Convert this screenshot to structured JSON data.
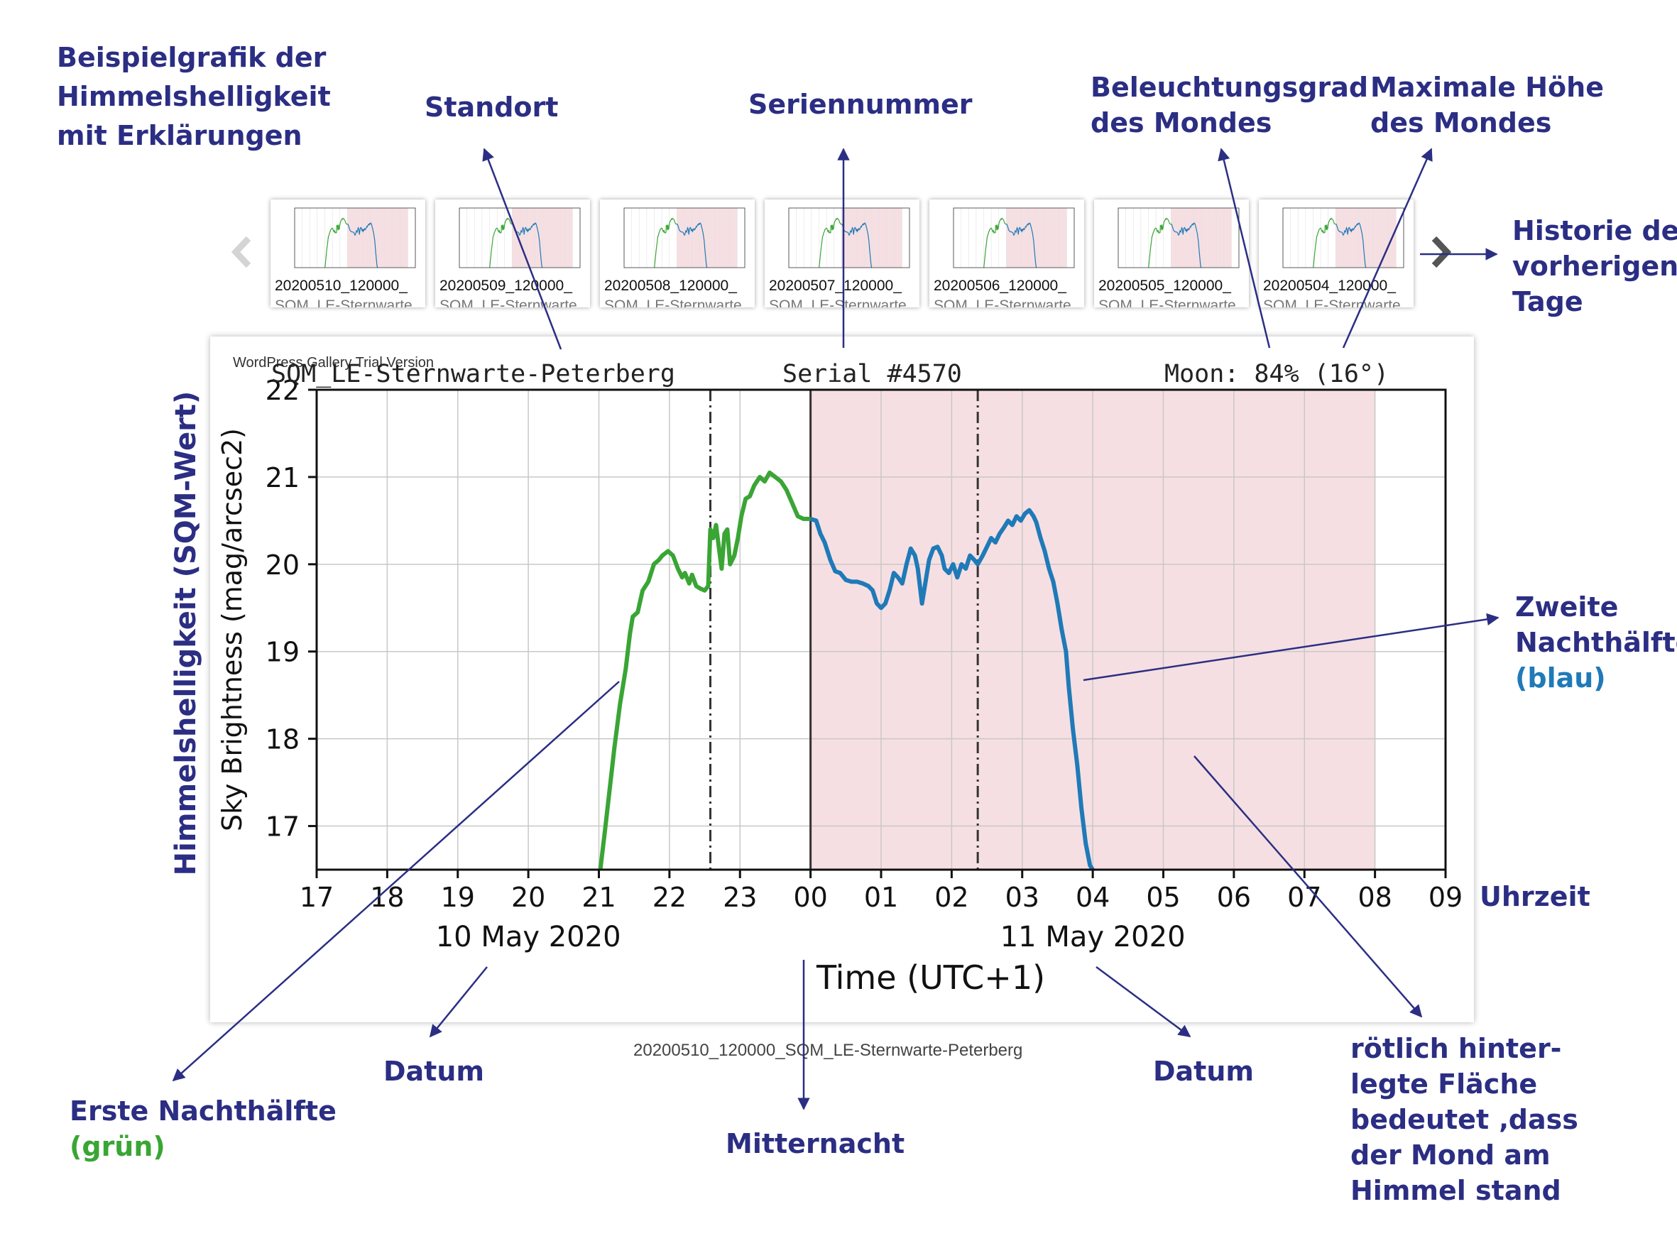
{
  "annotations": {
    "title_lines": [
      "Beispielgrafik der",
      "Himmelshelligkeit",
      "mit Erklärungen"
    ],
    "standort": "Standort",
    "seriennummer": "Seriennummer",
    "beleuchtung_lines": [
      "Beleuchtungsgrad",
      "des Mondes"
    ],
    "hoehe_lines": [
      "Maximale Höhe",
      "des Mondes"
    ],
    "historie_lines": [
      "Historie der",
      "vorherigen",
      "Tage"
    ],
    "zweite_lines": [
      "Zweite",
      "Nachthälfte"
    ],
    "zweite_color": "(blau)",
    "uhrzeit": "Uhrzeit",
    "erste": "Erste Nachthälfte",
    "erste_color": "(grün)",
    "datum_left": "Datum",
    "datum_right": "Datum",
    "mitternacht": "Mitternacht",
    "roetlich_lines": [
      "rötlich hinter-",
      "legte Fläche",
      "bedeutet ‚dass",
      "der Mond am",
      "Himmel stand"
    ],
    "y_axis_de": "Himmelshelligkeit (SQM-Wert)"
  },
  "gallery": {
    "thumbnails": [
      {
        "label": "20200510_120000_",
        "sub": "SQM_LE-Sternwarte"
      },
      {
        "label": "20200509_120000_",
        "sub": "SQM_LE-Sternwarte"
      },
      {
        "label": "20200508_120000_",
        "sub": "SQM_LE-Sternwarte"
      },
      {
        "label": "20200507_120000_",
        "sub": "SQM_LE-Sternwarte"
      },
      {
        "label": "20200506_120000_",
        "sub": "SQM_LE-Sternwarte"
      },
      {
        "label": "20200505_120000_",
        "sub": "SQM_LE-Sternwarte"
      },
      {
        "label": "20200504_120000_",
        "sub": "SQM_LE-Sternwarte"
      }
    ],
    "prev_icon": "chevron-left-icon",
    "next_icon": "chevron-right-icon",
    "trial_text": "WordPress Gallery Trial Version",
    "caption": "20200510_120000_SQM_LE-Sternwarte-Peterberg"
  },
  "chart_data": {
    "type": "line",
    "header_location": "SQM_LE-Sternwarte-Peterberg",
    "header_serial": "Serial #4570",
    "header_moon": "Moon: 84% (16°)",
    "ylabel": "Sky Brightness (mag/arcsec2)",
    "xlabel": "Time (UTC+1)",
    "date_labels": [
      {
        "hour": 20,
        "text": "10 May 2020"
      },
      {
        "hour": 28,
        "text": "11 May 2020"
      }
    ],
    "xlim": [
      17,
      33
    ],
    "ylim": [
      16.5,
      22
    ],
    "x_ticks": [
      {
        "v": 17,
        "label": "17"
      },
      {
        "v": 18,
        "label": "18"
      },
      {
        "v": 19,
        "label": "19"
      },
      {
        "v": 20,
        "label": "20"
      },
      {
        "v": 21,
        "label": "21"
      },
      {
        "v": 22,
        "label": "22"
      },
      {
        "v": 23,
        "label": "23"
      },
      {
        "v": 24,
        "label": "00"
      },
      {
        "v": 25,
        "label": "01"
      },
      {
        "v": 26,
        "label": "02"
      },
      {
        "v": 27,
        "label": "03"
      },
      {
        "v": 28,
        "label": "04"
      },
      {
        "v": 29,
        "label": "05"
      },
      {
        "v": 30,
        "label": "06"
      },
      {
        "v": 31,
        "label": "07"
      },
      {
        "v": 32,
        "label": "08"
      },
      {
        "v": 33,
        "label": "09"
      }
    ],
    "y_ticks": [
      17,
      18,
      19,
      20,
      21,
      22
    ],
    "grid": true,
    "moon_region": [
      24,
      32
    ],
    "vlines_dashdot": [
      22.58,
      26.37
    ],
    "vline_midnight": 24,
    "colors": {
      "first_half": "#3aa535",
      "second_half": "#1f7ab8",
      "moon_fill": "#f6dfe2",
      "annotation": "#2b2e83"
    },
    "series": [
      {
        "points": [
          [
            21.02,
            16.5
          ],
          [
            21.08,
            16.9
          ],
          [
            21.15,
            17.4
          ],
          [
            21.22,
            17.9
          ],
          [
            21.3,
            18.4
          ],
          [
            21.38,
            18.8
          ],
          [
            21.44,
            19.2
          ],
          [
            21.48,
            19.4
          ],
          [
            21.55,
            19.45
          ],
          [
            21.62,
            19.7
          ],
          [
            21.7,
            19.8
          ],
          [
            21.78,
            20.0
          ],
          [
            21.85,
            20.05
          ],
          [
            21.9,
            20.1
          ],
          [
            21.98,
            20.15
          ],
          [
            22.05,
            20.1
          ],
          [
            22.12,
            19.95
          ],
          [
            22.18,
            19.85
          ],
          [
            22.22,
            19.9
          ],
          [
            22.28,
            19.78
          ],
          [
            22.32,
            19.88
          ],
          [
            22.38,
            19.75
          ],
          [
            22.44,
            19.72
          ],
          [
            22.5,
            19.7
          ],
          [
            22.55,
            19.75
          ],
          [
            22.58,
            20.4
          ],
          [
            22.62,
            20.3
          ],
          [
            22.66,
            20.45
          ],
          [
            22.7,
            20.2
          ],
          [
            22.74,
            19.95
          ],
          [
            22.78,
            20.35
          ],
          [
            22.82,
            20.4
          ],
          [
            22.86,
            20.0
          ],
          [
            22.92,
            20.1
          ],
          [
            22.97,
            20.3
          ],
          [
            23.02,
            20.55
          ],
          [
            23.08,
            20.75
          ],
          [
            23.14,
            20.78
          ],
          [
            23.2,
            20.9
          ],
          [
            23.28,
            21.0
          ],
          [
            23.35,
            20.95
          ],
          [
            23.42,
            21.05
          ],
          [
            23.5,
            21.0
          ],
          [
            23.58,
            20.95
          ],
          [
            23.66,
            20.85
          ],
          [
            23.74,
            20.7
          ],
          [
            23.82,
            20.55
          ],
          [
            23.9,
            20.52
          ],
          [
            24.0,
            20.52
          ]
        ]
      },
      {
        "points": [
          [
            24.0,
            20.52
          ],
          [
            24.08,
            20.5
          ],
          [
            24.14,
            20.35
          ],
          [
            24.2,
            20.25
          ],
          [
            24.28,
            20.05
          ],
          [
            24.35,
            19.92
          ],
          [
            24.42,
            19.9
          ],
          [
            24.5,
            19.82
          ],
          [
            24.58,
            19.8
          ],
          [
            24.66,
            19.8
          ],
          [
            24.74,
            19.78
          ],
          [
            24.82,
            19.75
          ],
          [
            24.88,
            19.7
          ],
          [
            24.94,
            19.55
          ],
          [
            25.0,
            19.5
          ],
          [
            25.06,
            19.55
          ],
          [
            25.12,
            19.7
          ],
          [
            25.18,
            19.9
          ],
          [
            25.24,
            19.85
          ],
          [
            25.3,
            19.78
          ],
          [
            25.36,
            20.0
          ],
          [
            25.42,
            20.18
          ],
          [
            25.48,
            20.1
          ],
          [
            25.52,
            19.95
          ],
          [
            25.58,
            19.55
          ],
          [
            25.62,
            19.75
          ],
          [
            25.68,
            20.05
          ],
          [
            25.74,
            20.18
          ],
          [
            25.8,
            20.2
          ],
          [
            25.86,
            20.1
          ],
          [
            25.9,
            19.95
          ],
          [
            25.96,
            19.9
          ],
          [
            26.02,
            20.0
          ],
          [
            26.08,
            19.85
          ],
          [
            26.14,
            20.0
          ],
          [
            26.2,
            19.95
          ],
          [
            26.26,
            20.1
          ],
          [
            26.32,
            20.05
          ],
          [
            26.37,
            20.0
          ],
          [
            26.44,
            20.1
          ],
          [
            26.5,
            20.2
          ],
          [
            26.56,
            20.3
          ],
          [
            26.62,
            20.25
          ],
          [
            26.68,
            20.35
          ],
          [
            26.74,
            20.42
          ],
          [
            26.8,
            20.5
          ],
          [
            26.86,
            20.45
          ],
          [
            26.92,
            20.55
          ],
          [
            26.98,
            20.5
          ],
          [
            27.04,
            20.58
          ],
          [
            27.1,
            20.62
          ],
          [
            27.16,
            20.55
          ],
          [
            27.2,
            20.48
          ],
          [
            27.26,
            20.3
          ],
          [
            27.32,
            20.15
          ],
          [
            27.38,
            19.95
          ],
          [
            27.44,
            19.8
          ],
          [
            27.5,
            19.55
          ],
          [
            27.56,
            19.25
          ],
          [
            27.62,
            19.0
          ],
          [
            27.66,
            18.6
          ],
          [
            27.72,
            18.1
          ],
          [
            27.78,
            17.7
          ],
          [
            27.84,
            17.2
          ],
          [
            27.9,
            16.8
          ],
          [
            27.96,
            16.55
          ],
          [
            28.0,
            16.5
          ]
        ]
      }
    ]
  }
}
